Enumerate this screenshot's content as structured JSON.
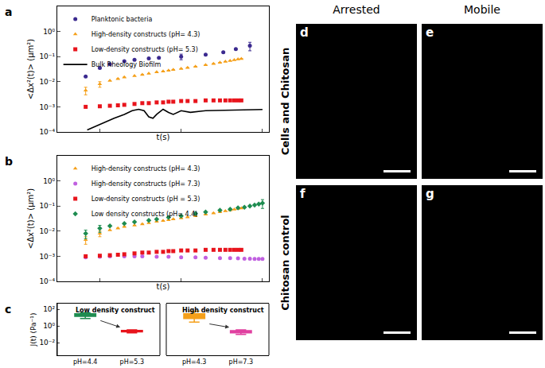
{
  "chart_data": [
    {
      "type": "scatter",
      "annotations": [
        "a"
      ],
      "x_label": "t(s)",
      "y_label": "<Δx²(t)> (μm²)",
      "log": true,
      "xlim": [
        0.03,
        12
      ],
      "ylim": [
        0.0001,
        10
      ],
      "xticks": [
        0.1,
        1,
        10
      ],
      "yticks": [
        {
          "value": 0.0001,
          "label": "10⁻⁴"
        },
        {
          "value": 0.001,
          "label": "10⁻³"
        },
        {
          "value": 0.01,
          "label": "10⁻²"
        },
        {
          "value": 0.1,
          "label": "10⁻¹"
        },
        {
          "value": 1,
          "label": "10⁰"
        }
      ],
      "tick_labels": "y",
      "legend": "upper left",
      "series": [
        {
          "name": "Planktonic bacteria",
          "color": "#3b2a8f",
          "marker": "circle",
          "type": "scatter",
          "x": [
            0.067,
            0.1,
            0.133,
            0.2,
            0.267,
            0.4,
            0.533,
            1,
            2,
            3.3,
            4.7,
            7
          ],
          "values": [
            0.016,
            0.035,
            0.05,
            0.065,
            0.075,
            0.085,
            0.09,
            0.1,
            0.12,
            0.15,
            0.2,
            0.27
          ],
          "errors": [
            null,
            null,
            null,
            null,
            null,
            null,
            null,
            0.025,
            null,
            null,
            null,
            0.1
          ]
        },
        {
          "name": "High-density constructs (pH= 4.3)",
          "color": "#f5a01a",
          "marker": "triangle",
          "type": "scatter",
          "x": [
            0.067,
            0.1,
            0.133,
            0.167,
            0.2,
            0.267,
            0.333,
            0.4,
            0.5,
            0.6,
            0.7,
            0.8,
            1,
            1.2,
            1.5,
            2,
            2.5,
            3,
            3.5,
            4,
            4.5,
            5,
            5.5
          ],
          "values": [
            0.0045,
            0.008,
            0.011,
            0.013,
            0.015,
            0.017,
            0.019,
            0.021,
            0.024,
            0.026,
            0.028,
            0.03,
            0.033,
            0.036,
            0.04,
            0.046,
            0.052,
            0.058,
            0.063,
            0.068,
            0.073,
            0.078,
            0.082
          ],
          "errors": [
            0.0015,
            0.002,
            null,
            null,
            null,
            null,
            null,
            null,
            null,
            null,
            null,
            null,
            null,
            null,
            null,
            null,
            null,
            null,
            null,
            null,
            null,
            null,
            null
          ]
        },
        {
          "name": "Low-density constructs (pH= 5.3)",
          "color": "#e8141c",
          "marker": "square",
          "type": "scatter",
          "x": [
            0.067,
            0.1,
            0.133,
            0.167,
            0.2,
            0.267,
            0.333,
            0.4,
            0.5,
            0.6,
            0.7,
            0.8,
            1,
            1.2,
            1.5,
            2,
            2.5,
            3,
            3.5,
            4,
            4.5,
            5,
            5.5
          ],
          "values": [
            0.001,
            0.00105,
            0.0011,
            0.00115,
            0.0012,
            0.0013,
            0.0014,
            0.0014,
            0.0015,
            0.0015,
            0.0016,
            0.0016,
            0.0017,
            0.0017,
            0.0017,
            0.0018,
            0.0018,
            0.0018,
            0.0018,
            0.0018,
            0.0018,
            0.0018,
            0.0018
          ]
        },
        {
          "name": "Bulk Rheology Biofilm",
          "color": "#000000",
          "type": "line",
          "x": [
            0.07,
            0.1,
            0.15,
            0.2,
            0.25,
            0.3,
            0.35,
            0.4,
            0.45,
            0.5,
            0.6,
            0.7,
            0.8,
            1,
            1.3,
            2,
            3,
            5,
            10
          ],
          "values": [
            0.00012,
            0.0002,
            0.00035,
            0.0005,
            0.0007,
            0.0008,
            0.0007,
            0.0004,
            0.00035,
            0.0005,
            0.0008,
            0.0006,
            0.0005,
            0.0007,
            0.0006,
            0.0007,
            0.00072,
            0.00075,
            0.00078
          ]
        }
      ]
    },
    {
      "type": "scatter",
      "annotations": [
        "b"
      ],
      "x_label": "t(s)",
      "y_label": "<Δx²(t)> (μm²)",
      "log": true,
      "xlim": [
        0.03,
        12
      ],
      "ylim": [
        0.0001,
        10
      ],
      "xticks": [
        0.1,
        1,
        10
      ],
      "yticks": [
        {
          "value": 0.0001,
          "label": "10⁻⁴"
        },
        {
          "value": 0.001,
          "label": "10⁻³"
        },
        {
          "value": 0.01,
          "label": "10⁻²"
        },
        {
          "value": 0.1,
          "label": "10⁻¹"
        },
        {
          "value": 1,
          "label": "10⁰"
        }
      ],
      "tick_labels": "y",
      "legend": "upper left",
      "series": [
        {
          "name": "High-density constructs (pH= 4.3)",
          "color": "#f5a01a",
          "marker": "triangle",
          "x": [
            0.067,
            0.1,
            0.133,
            0.167,
            0.2,
            0.267,
            0.333,
            0.4,
            0.5,
            0.6,
            0.7,
            0.8,
            1,
            1.2,
            1.5,
            2,
            2.5,
            3,
            3.5,
            4,
            4.5,
            5,
            5.5
          ],
          "values": [
            0.0045,
            0.008,
            0.011,
            0.013,
            0.015,
            0.017,
            0.019,
            0.021,
            0.024,
            0.026,
            0.028,
            0.03,
            0.033,
            0.036,
            0.04,
            0.046,
            0.052,
            0.058,
            0.063,
            0.068,
            0.073,
            0.078,
            0.082
          ],
          "errors": [
            0.0015,
            0.002,
            null,
            null,
            null,
            null,
            null,
            null,
            null,
            null,
            null,
            null,
            null,
            null,
            null,
            null,
            null,
            null,
            null,
            null,
            null,
            null,
            null
          ]
        },
        {
          "name": "High-density constructs (pH= 7.3)",
          "color": "#c060e0",
          "marker": "circle",
          "x": [
            0.067,
            0.1,
            0.133,
            0.2,
            0.267,
            0.333,
            0.5,
            0.7,
            1,
            1.5,
            2,
            3,
            4,
            5,
            6,
            7,
            8,
            9,
            10
          ],
          "values": [
            0.0009,
            0.00095,
            0.001,
            0.001,
            0.001,
            0.001,
            0.00095,
            0.00095,
            0.0009,
            0.0009,
            0.00088,
            0.00085,
            0.00085,
            0.00082,
            0.0008,
            0.0008,
            0.00078,
            0.00078,
            0.00078
          ]
        },
        {
          "name": "Low-density constructs (pH = 5.3)",
          "color": "#e8141c",
          "marker": "square",
          "x": [
            0.067,
            0.1,
            0.133,
            0.167,
            0.2,
            0.267,
            0.333,
            0.4,
            0.5,
            0.6,
            0.7,
            0.8,
            1,
            1.2,
            1.5,
            2,
            2.5,
            3,
            3.5,
            4,
            4.5,
            5,
            5.5
          ],
          "values": [
            0.001,
            0.00105,
            0.0011,
            0.00115,
            0.0012,
            0.0013,
            0.0014,
            0.0014,
            0.0015,
            0.0015,
            0.0016,
            0.0016,
            0.0017,
            0.0017,
            0.0017,
            0.0018,
            0.0018,
            0.0018,
            0.0018,
            0.0018,
            0.0018,
            0.0018,
            0.0018
          ]
        },
        {
          "name": "Low density constructs (pH= 4.4)",
          "color": "#1e8c50",
          "marker": "diamond",
          "x": [
            0.067,
            0.1,
            0.133,
            0.2,
            0.267,
            0.4,
            0.5,
            0.7,
            1,
            1.5,
            2,
            3,
            4,
            5,
            6,
            7,
            8,
            9,
            10
          ],
          "values": [
            0.008,
            0.013,
            0.016,
            0.02,
            0.023,
            0.027,
            0.03,
            0.035,
            0.04,
            0.05,
            0.058,
            0.068,
            0.075,
            0.085,
            0.09,
            0.1,
            0.11,
            0.12,
            0.13
          ],
          "errors": [
            0.003,
            0.004,
            null,
            null,
            null,
            null,
            null,
            null,
            null,
            null,
            null,
            null,
            null,
            null,
            null,
            null,
            null,
            null,
            0.05
          ]
        }
      ]
    },
    {
      "type": "box",
      "annotations": [
        "c"
      ],
      "y_label": "J(t) (Pa⁻¹)",
      "log": "y",
      "ylim": [
        0.0003,
        500
      ],
      "yticks": [
        {
          "value": 0.01,
          "label": "10⁻²"
        },
        {
          "value": 1,
          "label": "10⁰"
        },
        {
          "value": 100,
          "label": "10²"
        }
      ],
      "groups": [
        {
          "title": "Low density construct",
          "categories": [
            "pH=4.4",
            "pH=5.3"
          ],
          "colors": [
            "#1e8c50",
            "#e8141c"
          ],
          "lower": [
            8,
            0.15
          ],
          "q1": [
            15,
            0.2
          ],
          "median": [
            22,
            0.25
          ],
          "q3": [
            30,
            0.3
          ],
          "upper": [
            40,
            0.35
          ]
        },
        {
          "title": "High density construct",
          "categories": [
            "pH=4.3",
            "pH=7.3"
          ],
          "colors": [
            "#f5a01a",
            "#e040a0"
          ],
          "lower": [
            3,
            0.1
          ],
          "q1": [
            8,
            0.15
          ],
          "median": [
            15,
            0.2
          ],
          "q3": [
            30,
            0.28
          ],
          "upper": [
            60,
            0.35
          ]
        }
      ]
    }
  ],
  "images": {
    "columns": [
      "Arrested",
      "Mobile"
    ],
    "rows": [
      "Cells and Chitosan",
      "Chitosan control"
    ],
    "panels": [
      [
        "d",
        "e"
      ],
      [
        "f",
        "g"
      ]
    ]
  }
}
